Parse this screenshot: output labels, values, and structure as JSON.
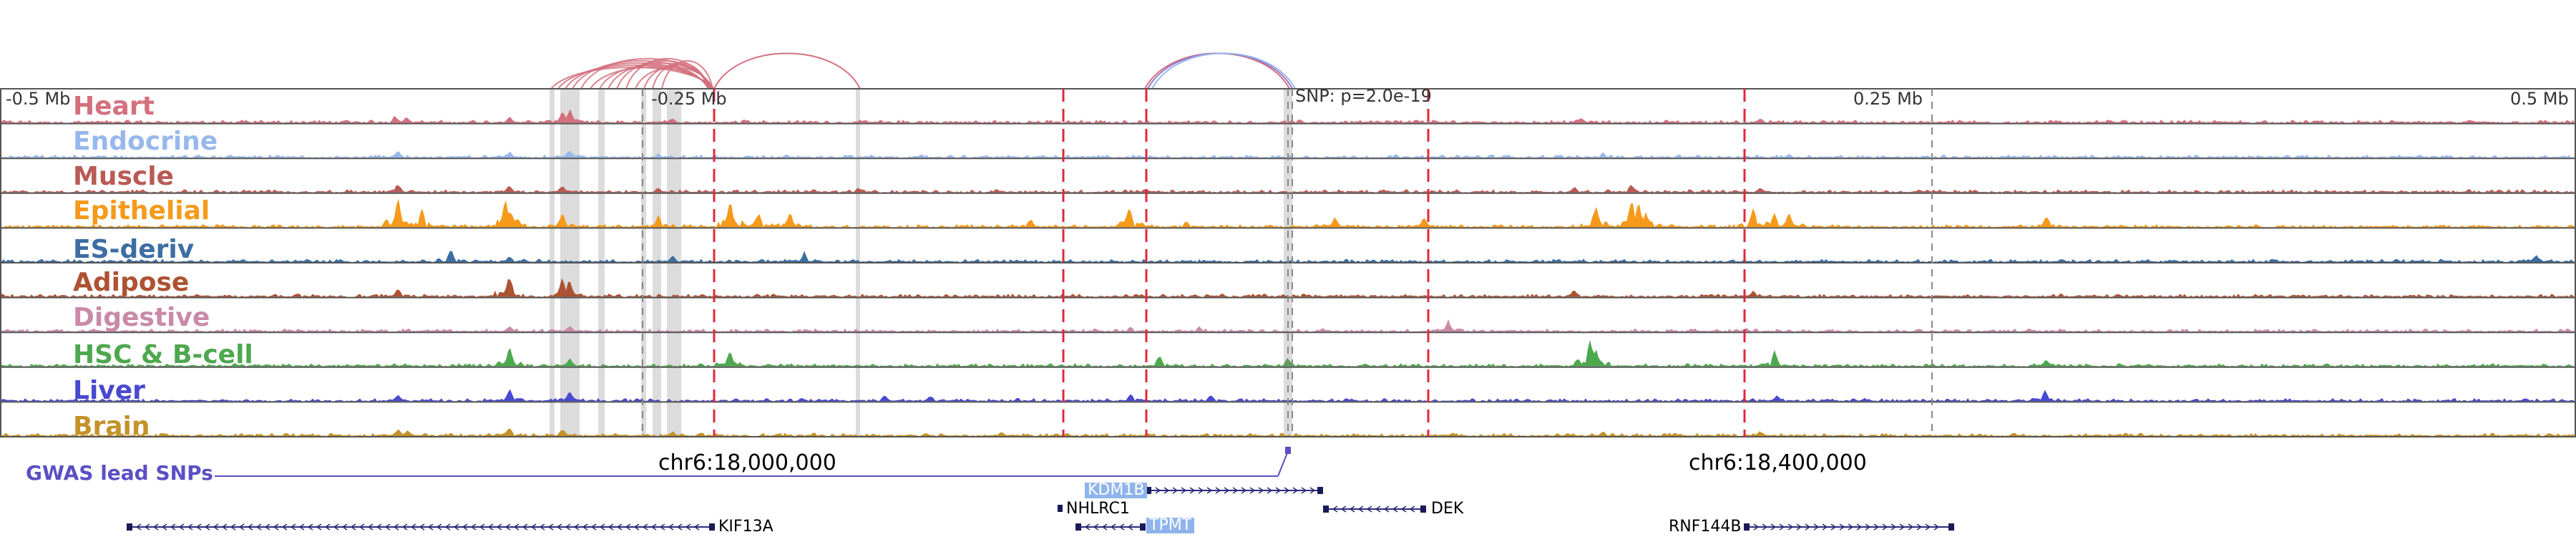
{
  "tracks": [
    {
      "name": "Heart",
      "color": "#d4707e"
    },
    {
      "name": "Endocrine",
      "color": "#98b8ec"
    },
    {
      "name": "Muscle",
      "color": "#b95a56"
    },
    {
      "name": "Epithelial",
      "color": "#f59a1a"
    },
    {
      "name": "ES-deriv",
      "color": "#3d6ea3"
    },
    {
      "name": "Adipose",
      "color": "#ad5232"
    },
    {
      "name": "Digestive",
      "color": "#c98aa8"
    },
    {
      "name": "HSC & B-cell",
      "color": "#4ea84e"
    },
    {
      "name": "Liver",
      "color": "#4848d0"
    },
    {
      "name": "Brain",
      "color": "#c49228"
    }
  ],
  "scale": {
    "left": "-0.5 Mb",
    "mid_left": "-0.25 Mb",
    "snp": "SNP: p=2.0e-19",
    "mid_right": "0.25 Mb",
    "right": "0.5 Mb"
  },
  "coordinates": {
    "c1": "chr6:18,000,000",
    "c2": "chr6:18,400,000"
  },
  "gwas": {
    "label": "GWAS lead SNPs"
  },
  "genes": {
    "kdm1b": "KDM1B",
    "nhlrc1": "NHLRC1",
    "dek": "DEK",
    "kif13a": "KIF13A",
    "tpmt": "TPMT",
    "rnf144b": "RNF144B"
  }
}
